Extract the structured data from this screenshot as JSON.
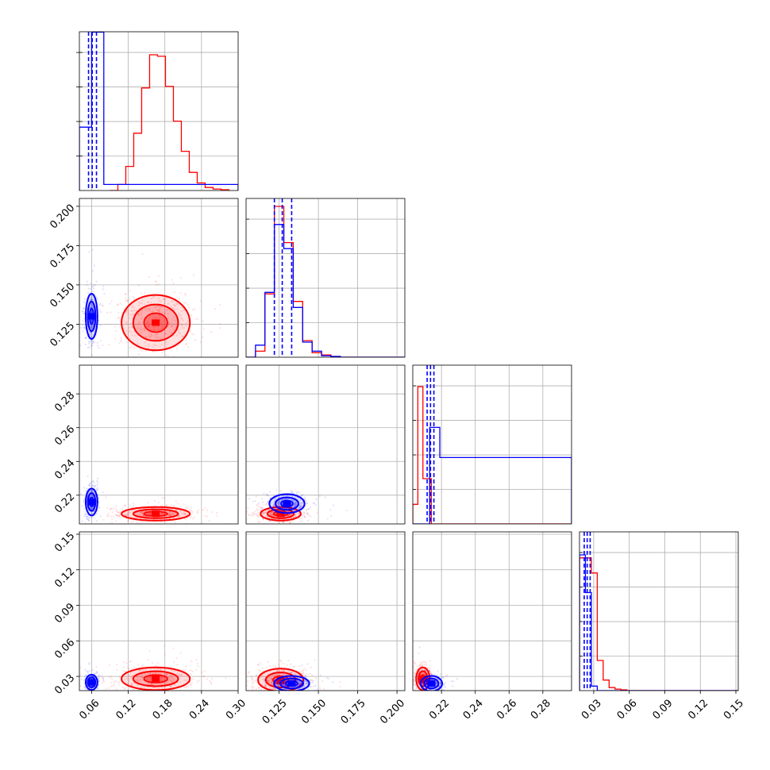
{
  "chart_data": {
    "type": "corner",
    "title": "",
    "series": [
      {
        "name": "",
        "color": "#0000ff"
      },
      {
        "name": "",
        "color": "#ff0000"
      }
    ],
    "grid": true,
    "parameters": [
      {
        "range": [
          0.04,
          0.3
        ],
        "ticks": [
          0.06,
          0.12,
          0.18,
          0.24,
          0.3
        ],
        "tick_labels": [
          "0.06",
          "0.12",
          "0.18",
          "0.24",
          "0.30"
        ]
      },
      {
        "range": [
          0.104,
          0.205
        ],
        "ticks": [
          0.125,
          0.15,
          0.175,
          0.2
        ],
        "tick_labels": [
          "0.125",
          "0.150",
          "0.175",
          "0.200"
        ]
      },
      {
        "range": [
          0.203,
          0.297
        ],
        "ticks": [
          0.22,
          0.24,
          0.26,
          0.28
        ],
        "tick_labels": [
          "0.22",
          "0.24",
          "0.26",
          "0.28"
        ]
      },
      {
        "range": [
          0.018,
          0.152
        ],
        "ticks": [
          0.03,
          0.06,
          0.09,
          0.12,
          0.15
        ],
        "tick_labels": [
          "0.03",
          "0.06",
          "0.09",
          "0.12",
          "0.15"
        ]
      }
    ],
    "histograms": [
      {
        "param": 0,
        "blue": {
          "x": [
            0.04,
            0.06,
            0.08,
            0.3
          ],
          "y": [
            0.42,
            1.05,
            0.04,
            0.0
          ]
        },
        "red": {
          "x": [
            0.09,
            0.103,
            0.116,
            0.129,
            0.142,
            0.155,
            0.168,
            0.181,
            0.194,
            0.207,
            0.22,
            0.233,
            0.246,
            0.259,
            0.272,
            0.285
          ],
          "y": [
            0.0,
            0.04,
            0.16,
            0.38,
            0.68,
            0.9,
            0.89,
            0.69,
            0.46,
            0.26,
            0.12,
            0.05,
            0.02,
            0.01,
            0.005,
            0.0
          ]
        },
        "quantiles": [
          0.055,
          0.061,
          0.068
        ]
      },
      {
        "param": 1,
        "blue": {
          "x": [
            0.104,
            0.11,
            0.116,
            0.122,
            0.128,
            0.134,
            0.14,
            0.146,
            0.152,
            0.158,
            0.164,
            0.205
          ],
          "y": [
            0.0,
            0.08,
            0.43,
            0.88,
            0.72,
            0.33,
            0.1,
            0.04,
            0.01,
            0.005,
            0.0,
            0.0
          ]
        },
        "red": {
          "x": [
            0.104,
            0.11,
            0.116,
            0.122,
            0.128,
            0.134,
            0.14,
            0.146,
            0.152,
            0.158,
            0.164,
            0.205
          ],
          "y": [
            0.0,
            0.04,
            0.42,
            1.0,
            0.76,
            0.37,
            0.11,
            0.03,
            0.015,
            0.005,
            0.0,
            0.0
          ]
        },
        "quantiles": [
          0.122,
          0.127,
          0.133
        ]
      },
      {
        "param": 2,
        "blue": {
          "x": [
            0.203,
            0.208,
            0.213,
            0.219,
            0.297
          ],
          "y": [
            0.0,
            0.0,
            0.64,
            0.44,
            0.01
          ]
        },
        "red": {
          "x": [
            0.203,
            0.206,
            0.209,
            0.214,
            0.297
          ],
          "y": [
            0.13,
            0.91,
            0.3,
            0.0,
            0.0
          ]
        },
        "quantiles": [
          0.2115,
          0.2135,
          0.2155
        ]
      },
      {
        "param": 3,
        "blue": {
          "x": [
            0.018,
            0.023,
            0.028,
            0.033,
            0.152
          ],
          "y": [
            0.9,
            0.65,
            0.03,
            0.0,
            0.0
          ]
        },
        "red": {
          "x": [
            0.018,
            0.028,
            0.033,
            0.038,
            0.043,
            0.048,
            0.053,
            0.058,
            0.152
          ],
          "y": [
            0.88,
            0.78,
            0.2,
            0.07,
            0.02,
            0.01,
            0.005,
            0.0,
            0.0
          ]
        },
        "quantiles": [
          0.022,
          0.0245,
          0.027
        ]
      }
    ],
    "scatter_2d": [
      {
        "x_param": 0,
        "y_param": 1,
        "blue_center": [
          0.06,
          0.13
        ],
        "blue_spread": [
          0.006,
          0.009
        ],
        "red_center": [
          0.165,
          0.126
        ],
        "red_spread": [
          0.035,
          0.011
        ]
      },
      {
        "x_param": 0,
        "y_param": 2,
        "blue_center": [
          0.06,
          0.216
        ],
        "blue_spread": [
          0.006,
          0.005
        ],
        "red_center": [
          0.165,
          0.209
        ],
        "red_spread": [
          0.035,
          0.0025
        ]
      },
      {
        "x_param": 1,
        "y_param": 2,
        "blue_center": [
          0.13,
          0.215
        ],
        "blue_spread": [
          0.007,
          0.0035
        ],
        "red_center": [
          0.126,
          0.209
        ],
        "red_spread": [
          0.008,
          0.0025
        ]
      },
      {
        "x_param": 0,
        "y_param": 3,
        "blue_center": [
          0.06,
          0.025
        ],
        "blue_spread": [
          0.006,
          0.004
        ],
        "red_center": [
          0.165,
          0.028
        ],
        "red_spread": [
          0.035,
          0.006
        ]
      },
      {
        "x_param": 1,
        "y_param": 3,
        "blue_center": [
          0.133,
          0.024
        ],
        "blue_spread": [
          0.007,
          0.004
        ],
        "red_center": [
          0.126,
          0.027
        ],
        "red_spread": [
          0.009,
          0.006
        ]
      },
      {
        "x_param": 2,
        "y_param": 3,
        "blue_center": [
          0.214,
          0.024
        ],
        "blue_spread": [
          0.004,
          0.004
        ],
        "red_center": [
          0.209,
          0.028
        ],
        "red_spread": [
          0.0025,
          0.006
        ]
      }
    ]
  }
}
